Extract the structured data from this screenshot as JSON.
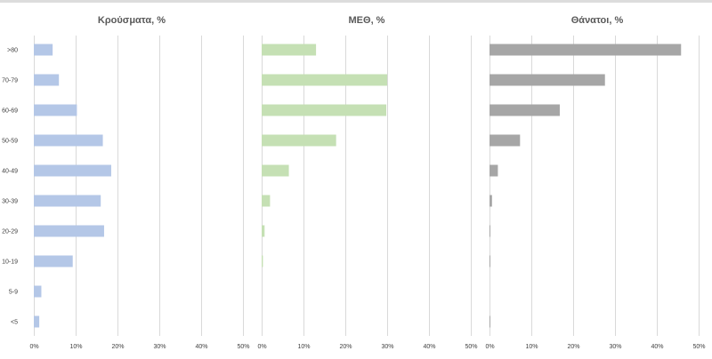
{
  "chart_data": {
    "type": "bar",
    "orientation": "horizontal",
    "categories": [
      ">80",
      "70-79",
      "60-69",
      "50-59",
      "40-49",
      "30-39",
      "20-29",
      "10-19",
      "5-9",
      "<5"
    ],
    "xlim": [
      0,
      50
    ],
    "x_ticks": [
      "0%",
      "10%",
      "20%",
      "30%",
      "40%",
      "50%"
    ],
    "grid": true,
    "panels": [
      {
        "title": "Κρούσματα, %",
        "color": "#b4c7e7",
        "values": [
          4.5,
          6.0,
          10.3,
          16.5,
          18.5,
          16.0,
          16.8,
          9.3,
          1.8,
          1.3
        ]
      },
      {
        "title": "ΜΕΘ, %",
        "color": "#c5e0b4",
        "values": [
          13.0,
          30.0,
          29.8,
          17.8,
          6.5,
          2.0,
          0.7,
          0.3,
          0,
          0
        ]
      },
      {
        "title": "Θάνατοι, %",
        "color": "#a6a6a6",
        "values": [
          45.8,
          27.6,
          16.8,
          7.3,
          2.0,
          0.6,
          0.2,
          0.1,
          0,
          0.1
        ]
      }
    ]
  }
}
